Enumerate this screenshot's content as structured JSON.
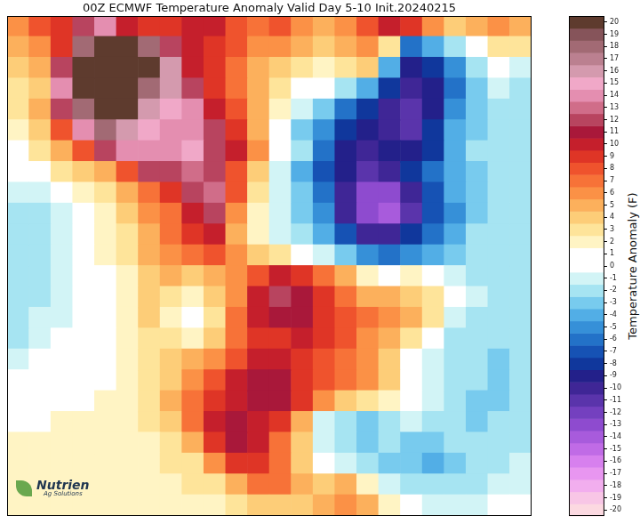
{
  "chart_data": {
    "type": "heatmap",
    "title": "00Z ECMWF Temperature Anomaly Valid Day 5-10 Init.20240215",
    "tick_labels": false,
    "annotations": [
      "Nutrien",
      "Ag Solutions"
    ],
    "cells": [
      [
        6,
        8,
        9,
        12,
        14,
        10,
        9,
        9,
        10,
        10,
        8,
        7,
        8,
        6,
        5,
        6,
        8,
        10,
        9,
        6,
        4,
        5,
        6,
        5
      ],
      [
        5,
        6,
        9,
        18,
        20,
        20,
        18,
        12,
        10,
        9,
        8,
        6,
        6,
        5,
        4,
        5,
        6,
        3,
        -6,
        -4,
        -2,
        0,
        3,
        3
      ],
      [
        4,
        5,
        12,
        20,
        20,
        20,
        20,
        16,
        10,
        9,
        7,
        5,
        4,
        3,
        2,
        3,
        4,
        -4,
        -9,
        -8,
        -5,
        -2,
        0,
        -1
      ],
      [
        3,
        4,
        14,
        20,
        20,
        20,
        18,
        16,
        12,
        9,
        7,
        5,
        3,
        1,
        0,
        -2,
        -4,
        -8,
        -10,
        -9,
        -6,
        -3,
        -1,
        -2
      ],
      [
        3,
        5,
        12,
        18,
        20,
        20,
        16,
        15,
        14,
        10,
        8,
        5,
        2,
        -1,
        -3,
        -6,
        -8,
        -10,
        -11,
        -9,
        -5,
        -3,
        -2,
        -2
      ],
      [
        2,
        4,
        8,
        14,
        18,
        16,
        15,
        14,
        14,
        12,
        9,
        5,
        1,
        -3,
        -5,
        -8,
        -9,
        -10,
        -11,
        -8,
        -4,
        -3,
        -2,
        -2
      ],
      [
        1,
        3,
        5,
        8,
        12,
        14,
        14,
        14,
        15,
        12,
        10,
        6,
        1,
        -2,
        -6,
        -9,
        -10,
        -9,
        -9,
        -8,
        -4,
        -2,
        -2,
        -2
      ],
      [
        0,
        1,
        3,
        4,
        5,
        8,
        12,
        12,
        13,
        12,
        8,
        4,
        -1,
        -4,
        -7,
        -9,
        -11,
        -10,
        -8,
        -6,
        -4,
        -3,
        -2,
        -2
      ],
      [
        -1,
        -1,
        1,
        2,
        3,
        5,
        7,
        9,
        12,
        13,
        8,
        3,
        -1,
        -3,
        -6,
        -10,
        -13,
        -13,
        -10,
        -7,
        -4,
        -3,
        -2,
        -2
      ],
      [
        -2,
        -2,
        -1,
        1,
        2,
        4,
        6,
        7,
        10,
        12,
        6,
        2,
        -1,
        -3,
        -5,
        -10,
        -13,
        -14,
        -11,
        -7,
        -5,
        -3,
        -2,
        -2
      ],
      [
        -2,
        -2,
        -1,
        0,
        2,
        3,
        5,
        7,
        9,
        10,
        5,
        2,
        -1,
        -2,
        -4,
        -7,
        -10,
        -10,
        -8,
        -6,
        -4,
        -2,
        -2,
        -2
      ],
      [
        -2,
        -2,
        -1,
        0,
        2,
        3,
        5,
        6,
        7,
        8,
        6,
        4,
        3,
        1,
        -1,
        -3,
        -5,
        -6,
        -5,
        -4,
        -3,
        -2,
        -2,
        -2
      ],
      [
        -2,
        -2,
        -1,
        0,
        1,
        2,
        4,
        5,
        4,
        5,
        6,
        8,
        10,
        9,
        7,
        5,
        2,
        1,
        2,
        0,
        -1,
        -2,
        -2,
        -2
      ],
      [
        -2,
        -2,
        -1,
        0,
        1,
        2,
        4,
        3,
        2,
        4,
        6,
        10,
        12,
        11,
        9,
        7,
        5,
        5,
        4,
        3,
        0,
        -1,
        -2,
        -2
      ],
      [
        -2,
        -1,
        -1,
        0,
        1,
        2,
        4,
        2,
        1,
        3,
        7,
        10,
        11,
        11,
        9,
        8,
        7,
        6,
        5,
        3,
        -1,
        -2,
        -2,
        -2
      ],
      [
        -2,
        -1,
        0,
        0,
        1,
        2,
        3,
        3,
        2,
        4,
        7,
        9,
        9,
        10,
        9,
        8,
        6,
        5,
        3,
        1,
        -2,
        -2,
        -2,
        -2
      ],
      [
        -1,
        0,
        0,
        1,
        1,
        2,
        3,
        4,
        5,
        6,
        8,
        10,
        10,
        9,
        8,
        7,
        6,
        4,
        1,
        -1,
        -2,
        -2,
        -3,
        -2
      ],
      [
        0,
        0,
        1,
        1,
        1,
        2,
        3,
        4,
        6,
        8,
        10,
        11,
        11,
        9,
        8,
        7,
        6,
        4,
        1,
        -1,
        -2,
        -2,
        -3,
        -2
      ],
      [
        1,
        1,
        1,
        1,
        2,
        2,
        3,
        5,
        7,
        9,
        10,
        11,
        11,
        9,
        6,
        4,
        3,
        2,
        1,
        -1,
        -2,
        -3,
        -3,
        -2
      ],
      [
        1,
        1,
        2,
        2,
        2,
        2,
        3,
        4,
        7,
        10,
        11,
        10,
        9,
        5,
        -1,
        -2,
        -3,
        -2,
        -1,
        -2,
        -2,
        -3,
        -2,
        -2
      ],
      [
        2,
        2,
        2,
        2,
        2,
        2,
        2,
        3,
        5,
        9,
        11,
        10,
        7,
        4,
        -1,
        -2,
        -3,
        -2,
        -3,
        -3,
        -2,
        -2,
        -2,
        -2
      ],
      [
        2,
        2,
        2,
        2,
        2,
        2,
        2,
        3,
        3,
        6,
        9,
        9,
        7,
        4,
        1,
        -1,
        -2,
        -3,
        -3,
        -4,
        -3,
        -2,
        -2,
        -1
      ],
      [
        2,
        2,
        2,
        2,
        2,
        2,
        2,
        2,
        3,
        3,
        5,
        7,
        7,
        5,
        4,
        5,
        2,
        -1,
        -2,
        -2,
        -2,
        -2,
        -1,
        -1
      ],
      [
        2,
        2,
        2,
        2,
        2,
        2,
        2,
        2,
        2,
        2,
        3,
        4,
        4,
        4,
        5,
        6,
        5,
        2,
        0,
        -1,
        -1,
        -1,
        0,
        1
      ]
    ],
    "colorbar": {
      "label": "Temperature Anomaly (F)",
      "range": [
        -20,
        20
      ],
      "ticks": [
        -20,
        -19,
        -18,
        -17,
        -16,
        -15,
        -14,
        -13,
        -12,
        -11,
        -10,
        -9,
        -8,
        -7,
        -6,
        -5,
        -4,
        -3,
        -2,
        -1,
        0,
        1,
        2,
        3,
        4,
        5,
        6,
        7,
        8,
        9,
        10,
        11,
        12,
        13,
        14,
        15,
        16,
        17,
        18,
        19,
        20
      ],
      "colors": [
        "#fcd9e1",
        "#f8c6e6",
        "#f2aeee",
        "#e896f0",
        "#d780ee",
        "#c06be6",
        "#a85bdc",
        "#8e4bcf",
        "#7440bf",
        "#5a34ab",
        "#3f2696",
        "#23208a",
        "#10379c",
        "#1652b4",
        "#2372c8",
        "#3690d8",
        "#52aee6",
        "#78cbee",
        "#a6e4f2",
        "#d2f4f6",
        "#ffffff",
        "#ffffff",
        "#fff4c4",
        "#fee49a",
        "#fdcd78",
        "#fcb05c",
        "#fb9146",
        "#f77238",
        "#ef532d",
        "#df3526",
        "#c51f2c",
        "#a9183a",
        "#b8445f",
        "#d06d89",
        "#e48eb0",
        "#f0a8c8",
        "#d49aae",
        "#bb8090",
        "#a26a74",
        "#86545a",
        "#5e3b2e"
      ]
    }
  }
}
